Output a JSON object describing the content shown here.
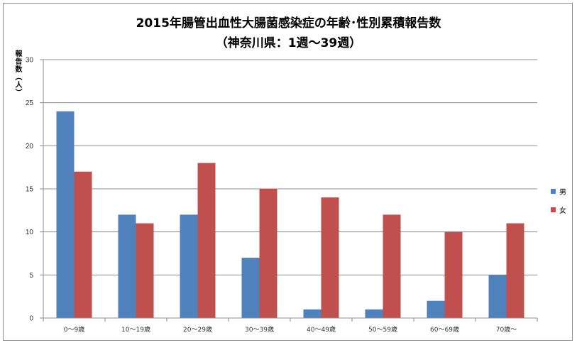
{
  "chart_data": {
    "type": "bar",
    "title": "2015年腸管出血性大腸菌感染症の年齢･性別累積報告数",
    "subtitle": "（神奈川県：1週～39週）",
    "ylabel": "報告数（人）",
    "xlabel": "",
    "categories": [
      "0～9歳",
      "10～19歳",
      "20～29歳",
      "30～39歳",
      "40～49歳",
      "50～59歳",
      "60～69歳",
      "70歳～"
    ],
    "series": [
      {
        "name": "男",
        "values": [
          24,
          12,
          12,
          7,
          1,
          1,
          2,
          5
        ],
        "color": "#4f81bd"
      },
      {
        "name": "女",
        "values": [
          17,
          11,
          18,
          15,
          14,
          12,
          10,
          11
        ],
        "color": "#c0504d"
      }
    ],
    "ylim": [
      0,
      30
    ],
    "yticks": [
      0,
      5,
      10,
      15,
      20,
      25,
      30
    ],
    "grid": true,
    "legend": "right"
  }
}
